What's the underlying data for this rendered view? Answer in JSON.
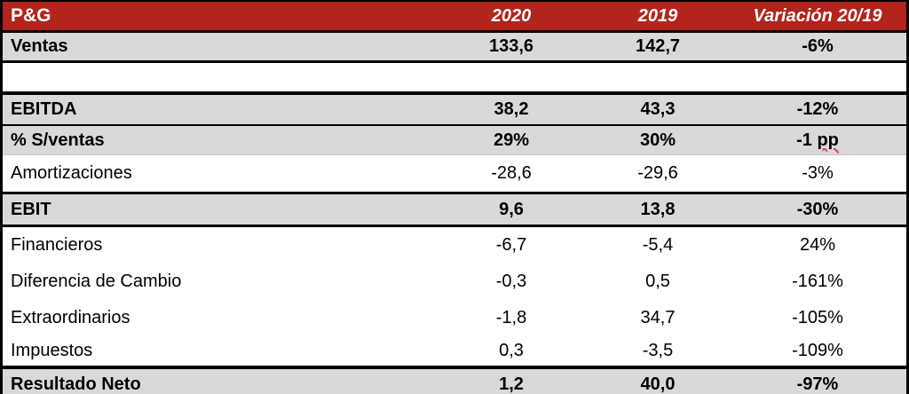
{
  "chart_data": {
    "type": "table",
    "title": "P&G",
    "columns": [
      "P&G",
      "2020",
      "2019",
      "Variación 20/19"
    ],
    "rows": [
      [
        "Ventas",
        "133,6",
        "142,7",
        "-6%"
      ],
      [
        "EBITDA",
        "38,2",
        "43,3",
        "-12%"
      ],
      [
        "% S/ventas",
        "29%",
        "30%",
        "-1 pp"
      ],
      [
        "Amortizaciones",
        "-28,6",
        "-29,6",
        "-3%"
      ],
      [
        "EBIT",
        "9,6",
        "13,8",
        "-30%"
      ],
      [
        "Financieros",
        "-6,7",
        "-5,4",
        "24%"
      ],
      [
        "Diferencia de Cambio",
        "-0,3",
        "0,5",
        "-161%"
      ],
      [
        "Extraordinarios",
        "-1,8",
        "34,7",
        "-105%"
      ],
      [
        "Impuestos",
        "0,3",
        "-3,5",
        "-109%"
      ],
      [
        "Resultado Neto",
        "1,2",
        "40,0",
        "-97%"
      ]
    ]
  },
  "header": {
    "title": "P&G",
    "col_2020": "2020",
    "col_2019": "2019",
    "col_variacion": "Variación 20/19"
  },
  "rows": [
    {
      "label": "Ventas",
      "y2020": "133,6",
      "y2019": "142,7",
      "variacion": "-6%",
      "kind": "total"
    },
    {
      "label": "",
      "y2020": "",
      "y2019": "",
      "variacion": "",
      "kind": "spacer"
    },
    {
      "label": "EBITDA",
      "y2020": "38,2",
      "y2019": "43,3",
      "variacion": "-12%",
      "kind": "total"
    },
    {
      "label": "% S/ventas",
      "y2020": "29%",
      "y2019": "30%",
      "variacion": "-1 pp",
      "wavy_suffix": "pp",
      "kind": "total"
    },
    {
      "label": "Amortizaciones",
      "y2020": "-28,6",
      "y2019": "-29,6",
      "variacion": "-3%",
      "kind": "detail"
    },
    {
      "label": "EBIT",
      "y2020": "9,6",
      "y2019": "13,8",
      "variacion": "-30%",
      "kind": "total"
    },
    {
      "label": "Financieros",
      "y2020": "-6,7",
      "y2019": "-5,4",
      "variacion": "24%",
      "kind": "detail"
    },
    {
      "label": "Diferencia de Cambio",
      "y2020": "-0,3",
      "y2019": "0,5",
      "variacion": "-161%",
      "kind": "detail"
    },
    {
      "label": "Extraordinarios",
      "y2020": "-1,8",
      "y2019": "34,7",
      "variacion": "-105%",
      "kind": "detail"
    },
    {
      "label": "Impuestos",
      "y2020": "0,3",
      "y2019": "-3,5",
      "variacion": "-109%",
      "kind": "detail"
    },
    {
      "label": "Resultado Neto",
      "y2020": "1,2",
      "y2019": "40,0",
      "variacion": "-97%",
      "kind": "total"
    }
  ],
  "colors": {
    "header_bg": "#B2241C",
    "header_text": "#FFFFFF",
    "row_highlight": "#D9D9D9",
    "border": "#000000",
    "spellcheck_squiggle": "#E8402C"
  }
}
